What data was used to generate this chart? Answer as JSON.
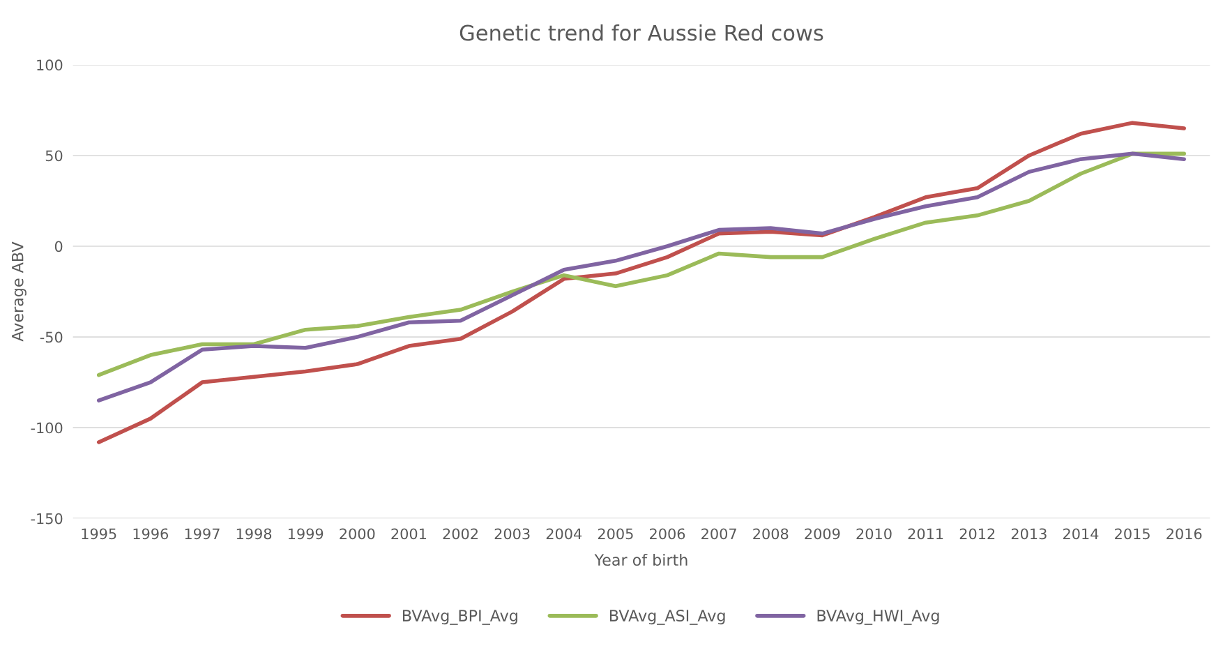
{
  "chart_data": {
    "type": "line",
    "title": "Genetic trend for Aussie Red cows",
    "xlabel": "Year of birth",
    "ylabel": "Average ABV",
    "categories": [
      "1995",
      "1996",
      "1997",
      "1998",
      "1999",
      "2000",
      "2001",
      "2002",
      "2003",
      "2004",
      "2005",
      "2006",
      "2007",
      "2008",
      "2009",
      "2010",
      "2011",
      "2012",
      "2013",
      "2014",
      "2015",
      "2016"
    ],
    "series": [
      {
        "name": "BVAvg_BPI_Avg",
        "color": "#c0504d",
        "values": [
          -108,
          -95,
          -75,
          -72,
          -69,
          -65,
          -55,
          -51,
          -36,
          -18,
          -15,
          -6,
          7,
          8,
          6,
          16,
          27,
          32,
          50,
          62,
          68,
          65
        ]
      },
      {
        "name": "BVAvg_ASI_Avg",
        "color": "#9bbb59",
        "values": [
          -71,
          -60,
          -54,
          -54,
          -46,
          -44,
          -39,
          -35,
          -25,
          -16,
          -22,
          -16,
          -4,
          -6,
          -6,
          4,
          13,
          17,
          25,
          40,
          51,
          51
        ]
      },
      {
        "name": "BVAvg_HWI_Avg",
        "color": "#8064a2",
        "values": [
          -85,
          -75,
          -57,
          -55,
          -56,
          -50,
          -42,
          -41,
          -27,
          -13,
          -8,
          0,
          9,
          10,
          7,
          15,
          22,
          27,
          41,
          48,
          51,
          48
        ]
      }
    ],
    "ylim": [
      -150,
      100
    ],
    "yticks": [
      -150,
      -100,
      -50,
      0,
      50,
      100
    ],
    "grid": "y",
    "legend": "bottom",
    "marker": "none",
    "line_style": "solid"
  }
}
